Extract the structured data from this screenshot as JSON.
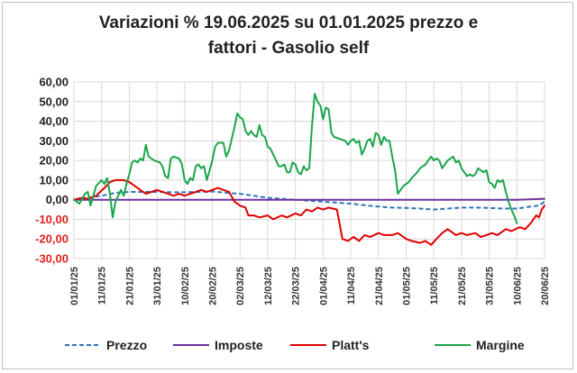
{
  "chart_data": {
    "type": "line",
    "title_line1": "Variazioni % 19.06.2025 su 01.01.2025 prezzo e",
    "title_line2": "fattori - Gasolio self",
    "ylim": [
      -30,
      60
    ],
    "yticks": [
      "60,00",
      "50,00",
      "40,00",
      "30,00",
      "20,00",
      "10,00",
      "0,00",
      "-10,00",
      "-20,00",
      "-30,00"
    ],
    "ytick_values": [
      60,
      50,
      40,
      30,
      20,
      10,
      0,
      -10,
      -20,
      -30
    ],
    "negative_tick_color": "#e0201b",
    "xlim": [
      0,
      170
    ],
    "xticks": [
      "01/01/25",
      "11/01/25",
      "21/01/25",
      "31/01/25",
      "10/02/25",
      "20/02/25",
      "02/03/25",
      "12/03/25",
      "22/03/25",
      "01/04/25",
      "11/04/25",
      "21/04/25",
      "01/05/25",
      "11/05/25",
      "21/05/25",
      "31/05/25",
      "10/06/25",
      "20/06/25"
    ],
    "xtick_days": [
      0,
      10,
      20,
      30,
      40,
      50,
      60,
      70,
      80,
      90,
      100,
      110,
      120,
      130,
      140,
      150,
      160,
      170
    ],
    "grid": true,
    "legend_position": "bottom",
    "series": [
      {
        "name": "Prezzo",
        "color": "#2e75b6",
        "dashed": true,
        "points": [
          [
            0,
            0
          ],
          [
            5,
            1
          ],
          [
            10,
            2
          ],
          [
            15,
            3.5
          ],
          [
            20,
            4
          ],
          [
            25,
            4
          ],
          [
            30,
            4
          ],
          [
            35,
            3.8
          ],
          [
            40,
            3.8
          ],
          [
            45,
            4
          ],
          [
            50,
            4.2
          ],
          [
            55,
            3.5
          ],
          [
            60,
            3
          ],
          [
            65,
            2
          ],
          [
            70,
            1
          ],
          [
            75,
            0.5
          ],
          [
            80,
            0
          ],
          [
            85,
            -0.5
          ],
          [
            90,
            -1
          ],
          [
            95,
            -1.5
          ],
          [
            100,
            -2
          ],
          [
            105,
            -2.8
          ],
          [
            110,
            -3.5
          ],
          [
            115,
            -4
          ],
          [
            120,
            -4.2
          ],
          [
            125,
            -4.5
          ],
          [
            130,
            -5
          ],
          [
            135,
            -4.5
          ],
          [
            140,
            -4
          ],
          [
            145,
            -4
          ],
          [
            150,
            -4.2
          ],
          [
            155,
            -4.5
          ],
          [
            160,
            -4.5
          ],
          [
            165,
            -3.5
          ],
          [
            168,
            -3
          ],
          [
            170,
            -1
          ]
        ]
      },
      {
        "name": "Imposte",
        "color": "#7030a0",
        "dashed": false,
        "points": [
          [
            0,
            0
          ],
          [
            20,
            0
          ],
          [
            60,
            0
          ],
          [
            100,
            0
          ],
          [
            130,
            0
          ],
          [
            160,
            0
          ],
          [
            170,
            0.5
          ]
        ]
      },
      {
        "name": "Platt's",
        "color": "#e00000",
        "dashed": false,
        "points": [
          [
            0,
            0
          ],
          [
            3,
            1
          ],
          [
            5,
            0.5
          ],
          [
            8,
            2
          ],
          [
            11,
            6
          ],
          [
            13,
            9
          ],
          [
            15,
            10
          ],
          [
            18,
            10
          ],
          [
            20,
            9
          ],
          [
            22,
            7
          ],
          [
            24,
            5
          ],
          [
            26,
            3
          ],
          [
            28,
            4
          ],
          [
            30,
            5
          ],
          [
            32,
            4
          ],
          [
            34,
            3
          ],
          [
            36,
            2
          ],
          [
            38,
            3
          ],
          [
            40,
            2
          ],
          [
            42,
            3
          ],
          [
            44,
            4
          ],
          [
            46,
            5
          ],
          [
            48,
            4
          ],
          [
            50,
            5
          ],
          [
            52,
            6
          ],
          [
            54,
            5
          ],
          [
            56,
            4
          ],
          [
            58,
            -1
          ],
          [
            60,
            -3
          ],
          [
            62,
            -4
          ],
          [
            63,
            -8
          ],
          [
            65,
            -8
          ],
          [
            67,
            -9
          ],
          [
            70,
            -8
          ],
          [
            72,
            -10
          ],
          [
            75,
            -8
          ],
          [
            77,
            -9
          ],
          [
            80,
            -7
          ],
          [
            82,
            -8
          ],
          [
            84,
            -5
          ],
          [
            86,
            -6
          ],
          [
            88,
            -4
          ],
          [
            90,
            -5
          ],
          [
            92,
            -4
          ],
          [
            95,
            -5
          ],
          [
            97,
            -20
          ],
          [
            99,
            -21
          ],
          [
            101,
            -19
          ],
          [
            103,
            -21
          ],
          [
            105,
            -18
          ],
          [
            107,
            -19
          ],
          [
            110,
            -17
          ],
          [
            112,
            -18
          ],
          [
            115,
            -18
          ],
          [
            117,
            -17
          ],
          [
            120,
            -20
          ],
          [
            122,
            -21
          ],
          [
            125,
            -22
          ],
          [
            127,
            -21
          ],
          [
            129,
            -23
          ],
          [
            131,
            -20
          ],
          [
            133,
            -17
          ],
          [
            135,
            -15
          ],
          [
            138,
            -18
          ],
          [
            140,
            -17
          ],
          [
            142,
            -18
          ],
          [
            145,
            -17
          ],
          [
            147,
            -19
          ],
          [
            149,
            -18
          ],
          [
            151,
            -17
          ],
          [
            153,
            -18
          ],
          [
            156,
            -15
          ],
          [
            158,
            -16
          ],
          [
            161,
            -14
          ],
          [
            163,
            -15
          ],
          [
            165,
            -12
          ],
          [
            167,
            -8
          ],
          [
            168,
            -9
          ],
          [
            169,
            -5
          ],
          [
            170,
            -3
          ]
        ]
      },
      {
        "name": "Margine",
        "color": "#1aa64a",
        "dashed": false,
        "points": [
          [
            0,
            0
          ],
          [
            2,
            -2
          ],
          [
            4,
            3
          ],
          [
            5,
            4
          ],
          [
            6,
            -3
          ],
          [
            8,
            7
          ],
          [
            10,
            10
          ],
          [
            11,
            8
          ],
          [
            12,
            11
          ],
          [
            13,
            3
          ],
          [
            14,
            -9
          ],
          [
            15,
            -1
          ],
          [
            16,
            2
          ],
          [
            17,
            5
          ],
          [
            18,
            2
          ],
          [
            19,
            8
          ],
          [
            20,
            13
          ],
          [
            21,
            19
          ],
          [
            22,
            20
          ],
          [
            23,
            19
          ],
          [
            24,
            21
          ],
          [
            25,
            20
          ],
          [
            26,
            28
          ],
          [
            27,
            22
          ],
          [
            29,
            20
          ],
          [
            31,
            19
          ],
          [
            32,
            17
          ],
          [
            33,
            12
          ],
          [
            34,
            11
          ],
          [
            35,
            21
          ],
          [
            36,
            22
          ],
          [
            38,
            21
          ],
          [
            39,
            18
          ],
          [
            40,
            10
          ],
          [
            41,
            8
          ],
          [
            42,
            11
          ],
          [
            43,
            10
          ],
          [
            44,
            17
          ],
          [
            45,
            18
          ],
          [
            46,
            16
          ],
          [
            47,
            17
          ],
          [
            48,
            10
          ],
          [
            49,
            15
          ],
          [
            50,
            20
          ],
          [
            51,
            27
          ],
          [
            52,
            29
          ],
          [
            54,
            29
          ],
          [
            55,
            22
          ],
          [
            56,
            25
          ],
          [
            57,
            31
          ],
          [
            58,
            37
          ],
          [
            59,
            44
          ],
          [
            60,
            42
          ],
          [
            61,
            41
          ],
          [
            62,
            35
          ],
          [
            63,
            33
          ],
          [
            64,
            35
          ],
          [
            65,
            33
          ],
          [
            66,
            32
          ],
          [
            67,
            38
          ],
          [
            68,
            33
          ],
          [
            69,
            32
          ],
          [
            70,
            27
          ],
          [
            71,
            26
          ],
          [
            73,
            20
          ],
          [
            74,
            17
          ],
          [
            75,
            17
          ],
          [
            76,
            18
          ],
          [
            77,
            14
          ],
          [
            78,
            14
          ],
          [
            79,
            19
          ],
          [
            80,
            18
          ],
          [
            81,
            14
          ],
          [
            82,
            13
          ],
          [
            83,
            17
          ],
          [
            84,
            15
          ],
          [
            85,
            16
          ],
          [
            86,
            38
          ],
          [
            87,
            54
          ],
          [
            88,
            50
          ],
          [
            89,
            48
          ],
          [
            90,
            41
          ],
          [
            91,
            47
          ],
          [
            92,
            46
          ],
          [
            93,
            34
          ],
          [
            94,
            32
          ],
          [
            96,
            31
          ],
          [
            98,
            30
          ],
          [
            99,
            28
          ],
          [
            100,
            30
          ],
          [
            101,
            31
          ],
          [
            102,
            29
          ],
          [
            103,
            30
          ],
          [
            104,
            23
          ],
          [
            105,
            26
          ],
          [
            106,
            30
          ],
          [
            107,
            31
          ],
          [
            108,
            27
          ],
          [
            109,
            34
          ],
          [
            110,
            33
          ],
          [
            111,
            28
          ],
          [
            112,
            32
          ],
          [
            113,
            30
          ],
          [
            114,
            30
          ],
          [
            115,
            22
          ],
          [
            116,
            15
          ],
          [
            117,
            3
          ],
          [
            118,
            5
          ],
          [
            119,
            7
          ],
          [
            120,
            8
          ],
          [
            121,
            9
          ],
          [
            122,
            11
          ],
          [
            124,
            14
          ],
          [
            125,
            16
          ],
          [
            127,
            18
          ],
          [
            128,
            20
          ],
          [
            129,
            22
          ],
          [
            130,
            20
          ],
          [
            131,
            21
          ],
          [
            132,
            20
          ],
          [
            133,
            16
          ],
          [
            134,
            18
          ],
          [
            135,
            20
          ],
          [
            136,
            21
          ],
          [
            137,
            22
          ],
          [
            138,
            19
          ],
          [
            139,
            20
          ],
          [
            140,
            16
          ],
          [
            141,
            14
          ],
          [
            142,
            12
          ],
          [
            143,
            13
          ],
          [
            144,
            12
          ],
          [
            145,
            13
          ],
          [
            146,
            16
          ],
          [
            148,
            14
          ],
          [
            149,
            15
          ],
          [
            150,
            9
          ],
          [
            151,
            8
          ],
          [
            152,
            6
          ],
          [
            153,
            10
          ],
          [
            154,
            9
          ],
          [
            155,
            10
          ],
          [
            156,
            4
          ],
          [
            157,
            -1
          ],
          [
            158,
            -5
          ],
          [
            159,
            -8
          ],
          [
            160,
            -12
          ]
        ]
      }
    ]
  }
}
